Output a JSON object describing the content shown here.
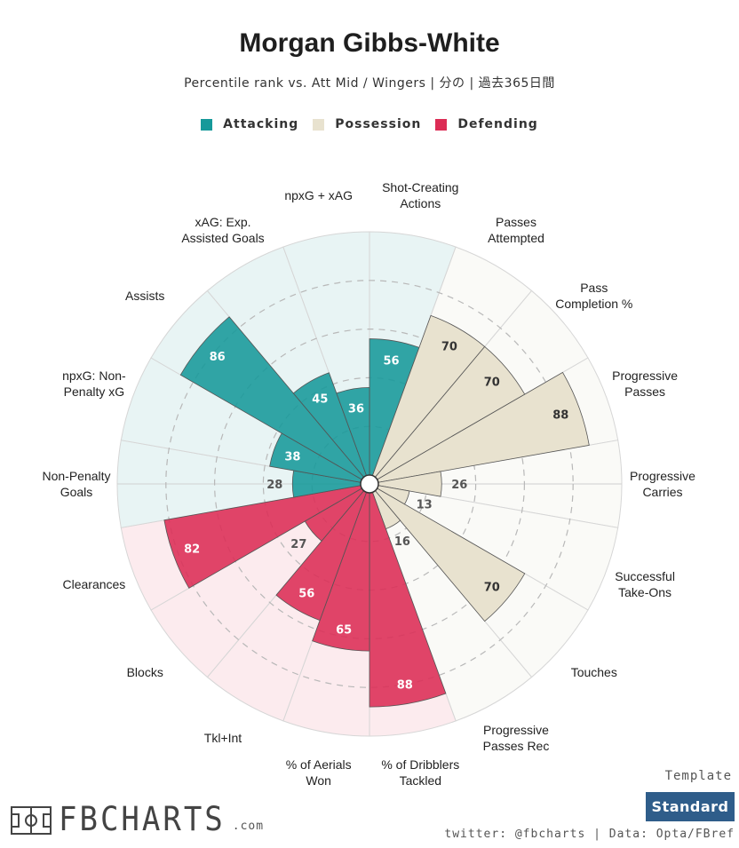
{
  "title": "Morgan Gibbs-White",
  "subtitle": "Percentile rank vs. Att Mid / Wingers | 分の | 過去365日間",
  "legend": [
    {
      "label": "Attacking",
      "color": "#16999a"
    },
    {
      "label": "Possession",
      "color": "#e8e2cf"
    },
    {
      "label": "Defending",
      "color": "#dc2c55"
    }
  ],
  "chart_data": {
    "type": "polar-bar",
    "range": [
      0,
      100
    ],
    "grid_levels": [
      20,
      40,
      60,
      80
    ],
    "categories": [
      {
        "label": "Shot-Creating\nActions",
        "value": 56,
        "group": "Attacking"
      },
      {
        "label": "Passes\nAttempted",
        "value": 70,
        "group": "Possession"
      },
      {
        "label": "Pass\nCompletion %",
        "value": 70,
        "group": "Possession"
      },
      {
        "label": "Progressive\nPasses",
        "value": 88,
        "group": "Possession"
      },
      {
        "label": "Progressive\nCarries",
        "value": 26,
        "group": "Possession"
      },
      {
        "label": "Successful\nTake-Ons",
        "value": 13,
        "group": "Possession"
      },
      {
        "label": "Touches",
        "value": 70,
        "group": "Possession"
      },
      {
        "label": "Progressive\nPasses Rec",
        "value": 16,
        "group": "Possession"
      },
      {
        "label": "% of Dribblers\nTackled",
        "value": 88,
        "group": "Defending"
      },
      {
        "label": "% of Aerials\nWon",
        "value": 65,
        "group": "Defending"
      },
      {
        "label": "Tkl+Int",
        "value": 56,
        "group": "Defending"
      },
      {
        "label": "Blocks",
        "value": 27,
        "group": "Defending"
      },
      {
        "label": "Clearances",
        "value": 82,
        "group": "Defending"
      },
      {
        "label": "Non-Penalty\nGoals",
        "value": 28,
        "group": "Attacking"
      },
      {
        "label": "npxG: Non-\nPenalty xG",
        "value": 38,
        "group": "Attacking"
      },
      {
        "label": "Assists",
        "value": 86,
        "group": "Attacking"
      },
      {
        "label": "xAG: Exp.\nAssisted Goals",
        "value": 45,
        "group": "Attacking"
      },
      {
        "label": "npxG + xAG",
        "value": 36,
        "group": "Attacking"
      }
    ],
    "group_colors": {
      "Attacking": {
        "bar": "#16999a",
        "bg": "#e8f4f4",
        "text": "#ffffff"
      },
      "Possession": {
        "bar": "#e8e2cf",
        "bg": "#fafaf7",
        "text": "#333333"
      },
      "Defending": {
        "bar": "#dc2c55",
        "bg": "#fcebee",
        "text": "#ffffff"
      }
    }
  },
  "template": {
    "label": "Template",
    "button": "Standard"
  },
  "footer": "twitter: @fbcharts | Data: Opta/FBref",
  "logo": {
    "text": "FBCHARTS",
    "suffix": ".com"
  }
}
